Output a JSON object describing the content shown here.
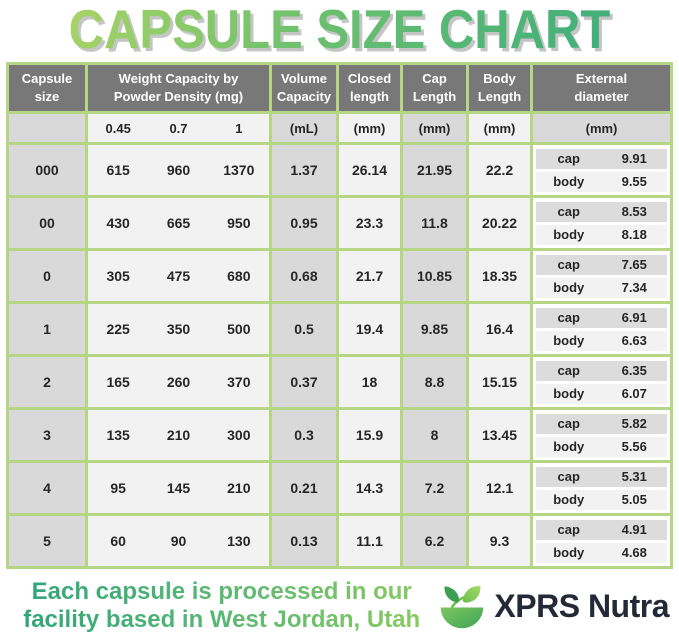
{
  "title": {
    "text": "CAPSULE SIZE CHART"
  },
  "colors": {
    "title_gradient_start": "#a8d465",
    "title_gradient_end": "#3fae7c",
    "table_border_green": "#b7d685",
    "header_bg": "#787878",
    "header_text": "#ffffff",
    "cell_gray": "#d9d9d9",
    "cell_light": "#f2f2f2",
    "external_cap_band": "#dcdcdc",
    "external_body_band": "#f2f2f2",
    "footer_gradient_start": "#2da47c",
    "footer_gradient_end": "#8bcb5e",
    "brand_text_color": "#232937",
    "logo_green_dark": "#3d9e52",
    "logo_green_light": "#8cc63f"
  },
  "chart_data": {
    "type": "table",
    "title": "CAPSULE SIZE CHART",
    "headers": [
      {
        "line1": "Capsule size",
        "line2": ""
      },
      {
        "line1": "Weight Capacity by",
        "line2": "Powder Density (mg)"
      },
      {
        "line1": "Volume",
        "line2": "Capacity"
      },
      {
        "line1": "Closed",
        "line2": "length"
      },
      {
        "line1": "Cap",
        "line2": "Length"
      },
      {
        "line1": "Body",
        "line2": "Length"
      },
      {
        "line1": "External",
        "line2": "diameter"
      }
    ],
    "subheaders": {
      "capsule_size": "",
      "densities": [
        "0.45",
        "0.7",
        "1"
      ],
      "volume_unit": "(mL)",
      "closed_unit": "(mm)",
      "cap_unit": "(mm)",
      "body_unit": "(mm)",
      "external_unit": "(mm)"
    },
    "external_row_labels": {
      "cap": "cap",
      "body": "body"
    },
    "rows": [
      {
        "size": "000",
        "weights": [
          "615",
          "960",
          "1370"
        ],
        "volume": "1.37",
        "closed_length": "26.14",
        "cap_length": "21.95",
        "body_length": "22.2",
        "external_cap": "9.91",
        "external_body": "9.55"
      },
      {
        "size": "00",
        "weights": [
          "430",
          "665",
          "950"
        ],
        "volume": "0.95",
        "closed_length": "23.3",
        "cap_length": "11.8",
        "body_length": "20.22",
        "external_cap": "8.53",
        "external_body": "8.18"
      },
      {
        "size": "0",
        "weights": [
          "305",
          "475",
          "680"
        ],
        "volume": "0.68",
        "closed_length": "21.7",
        "cap_length": "10.85",
        "body_length": "18.35",
        "external_cap": "7.65",
        "external_body": "7.34"
      },
      {
        "size": "1",
        "weights": [
          "225",
          "350",
          "500"
        ],
        "volume": "0.5",
        "closed_length": "19.4",
        "cap_length": "9.85",
        "body_length": "16.4",
        "external_cap": "6.91",
        "external_body": "6.63"
      },
      {
        "size": "2",
        "weights": [
          "165",
          "260",
          "370"
        ],
        "volume": "0.37",
        "closed_length": "18",
        "cap_length": "8.8",
        "body_length": "15.15",
        "external_cap": "6.35",
        "external_body": "6.07"
      },
      {
        "size": "3",
        "weights": [
          "135",
          "210",
          "300"
        ],
        "volume": "0.3",
        "closed_length": "15.9",
        "cap_length": "8",
        "body_length": "13.45",
        "external_cap": "5.82",
        "external_body": "5.56"
      },
      {
        "size": "4",
        "weights": [
          "95",
          "145",
          "210"
        ],
        "volume": "0.21",
        "closed_length": "14.3",
        "cap_length": "7.2",
        "body_length": "12.1",
        "external_cap": "5.31",
        "external_body": "5.05"
      },
      {
        "size": "5",
        "weights": [
          "60",
          "90",
          "130"
        ],
        "volume": "0.13",
        "closed_length": "11.1",
        "cap_length": "6.2",
        "body_length": "9.3",
        "external_cap": "4.91",
        "external_body": "4.68"
      }
    ]
  },
  "footer": {
    "line1": "Each capsule is processed in our",
    "line2": "facility based in West Jordan, Utah",
    "brand": "XPRS Nutra",
    "logo_icon": "leaf-bowl-icon"
  }
}
